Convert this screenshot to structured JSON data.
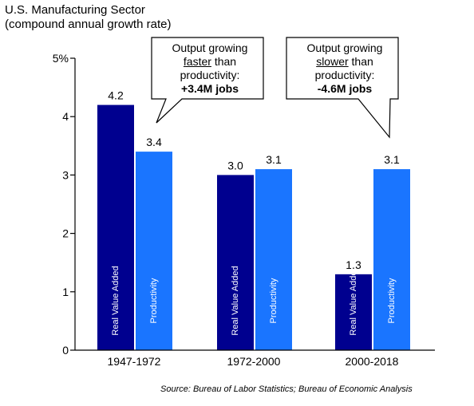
{
  "title_line1": "U.S. Manufacturing Sector",
  "title_line2": "(compound annual growth rate)",
  "source": "Source: Bureau of Labor Statistics; Bureau of Economic Analysis",
  "callouts": [
    {
      "pre": "Output growing",
      "emph": "faster",
      "mid": " than",
      "line3": "productivity:",
      "bold": "+3.4M jobs"
    },
    {
      "pre": "Output growing",
      "emph": "slower",
      "mid": " than",
      "line3": "productivity:",
      "bold": "-4.6M jobs"
    }
  ],
  "chart_data": {
    "type": "bar",
    "categories": [
      "1947-1972",
      "1972-2000",
      "2000-2018"
    ],
    "series": [
      {
        "name": "Real Value Added",
        "values": [
          4.2,
          3.0,
          1.3
        ],
        "color": "#00008f"
      },
      {
        "name": "Productivity",
        "values": [
          3.4,
          3.1,
          3.1
        ],
        "color": "#1a75ff"
      }
    ],
    "data_labels": [
      [
        "4.2",
        "3.0",
        "1.3"
      ],
      [
        "3.4",
        "3.1",
        "3.1"
      ]
    ],
    "ylim": [
      0,
      5
    ],
    "yticks": [
      "0",
      "1",
      "2",
      "3",
      "4",
      "5%"
    ],
    "grid": false,
    "legend": "labels inside bars"
  }
}
